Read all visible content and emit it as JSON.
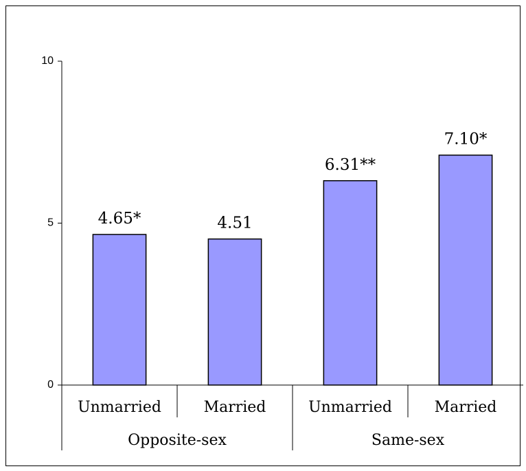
{
  "chart_data": {
    "type": "bar",
    "categories": [
      "Unmarried",
      "Married",
      "Unmarried",
      "Married"
    ],
    "groups": [
      "Opposite-sex",
      "Same-sex"
    ],
    "values": [
      4.65,
      4.51,
      6.31,
      7.1
    ],
    "value_labels": [
      "4.65*",
      "4.51",
      "6.31**",
      "7.10*"
    ],
    "color": "#9999ff",
    "ylim": [
      0,
      10
    ],
    "yticks": [
      0,
      5,
      10
    ],
    "grid": false
  }
}
